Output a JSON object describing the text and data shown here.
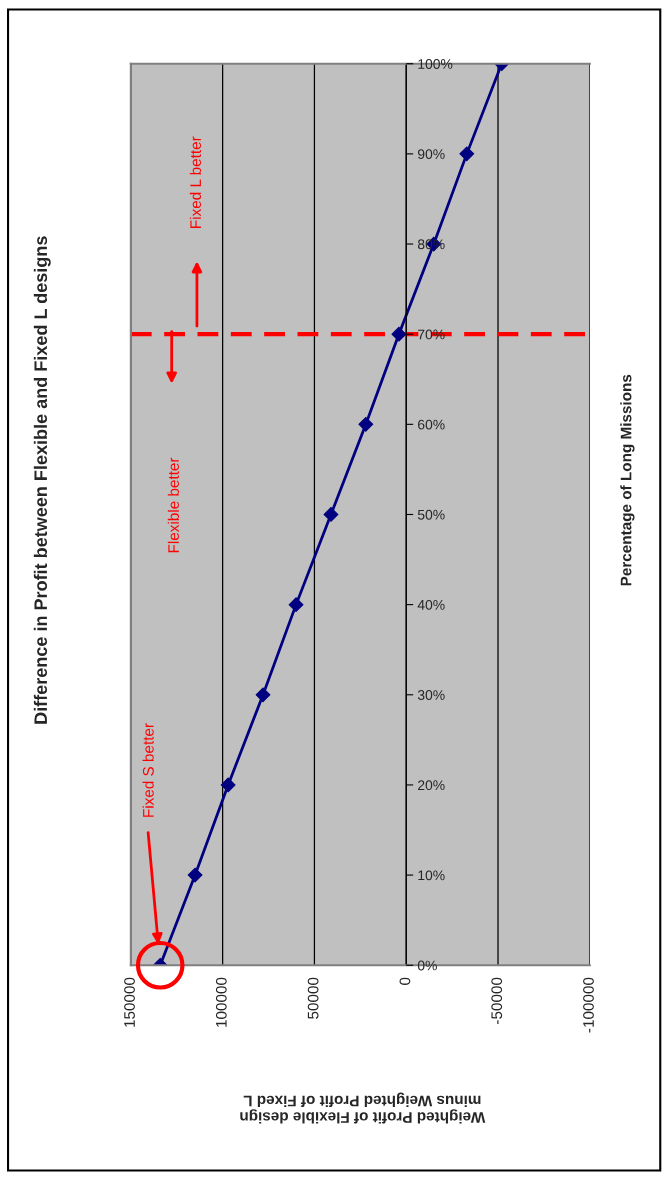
{
  "chart_data": {
    "type": "line",
    "title": "Difference in Profit between Flexible and Fixed L designs",
    "ylabel": "Percentage of Long Missions",
    "xlabel": "Weighted Profit of Flexible design\nminus Weighted Profit of Fixed L",
    "series": [
      {
        "color": "#000080",
        "x": [
          134000,
          115000,
          97000,
          78000,
          60000,
          41000,
          22000,
          4000,
          -15000,
          -33000,
          -52000
        ],
        "values": [
          0,
          10,
          20,
          30,
          40,
          50,
          60,
          70,
          80,
          90,
          100
        ]
      }
    ],
    "ylim": [
      0,
      100
    ],
    "yticks": [
      {
        "value": 0,
        "label": "0%"
      },
      {
        "value": 10,
        "label": "10%"
      },
      {
        "value": 20,
        "label": "20%"
      },
      {
        "value": 30,
        "label": "30%"
      },
      {
        "value": 40,
        "label": "40%"
      },
      {
        "value": 50,
        "label": "50%"
      },
      {
        "value": 60,
        "label": "60%"
      },
      {
        "value": 70,
        "label": "70%"
      },
      {
        "value": 80,
        "label": "80%"
      },
      {
        "value": 90,
        "label": "90%"
      },
      {
        "value": 100,
        "label": "100%"
      }
    ],
    "xlim": [
      150000,
      -100000
    ],
    "xticks": [
      150000,
      100000,
      50000,
      0,
      -50000,
      -100000
    ],
    "grid": "x",
    "marker": "diamond",
    "line_style": "solid",
    "ref_lines": [
      {
        "axis": "y",
        "value": 70,
        "color": "#ff0000",
        "line_style": "dashed"
      }
    ],
    "annotations": [
      "Fixed S better",
      "Flexible better",
      "Fixed L better"
    ]
  }
}
